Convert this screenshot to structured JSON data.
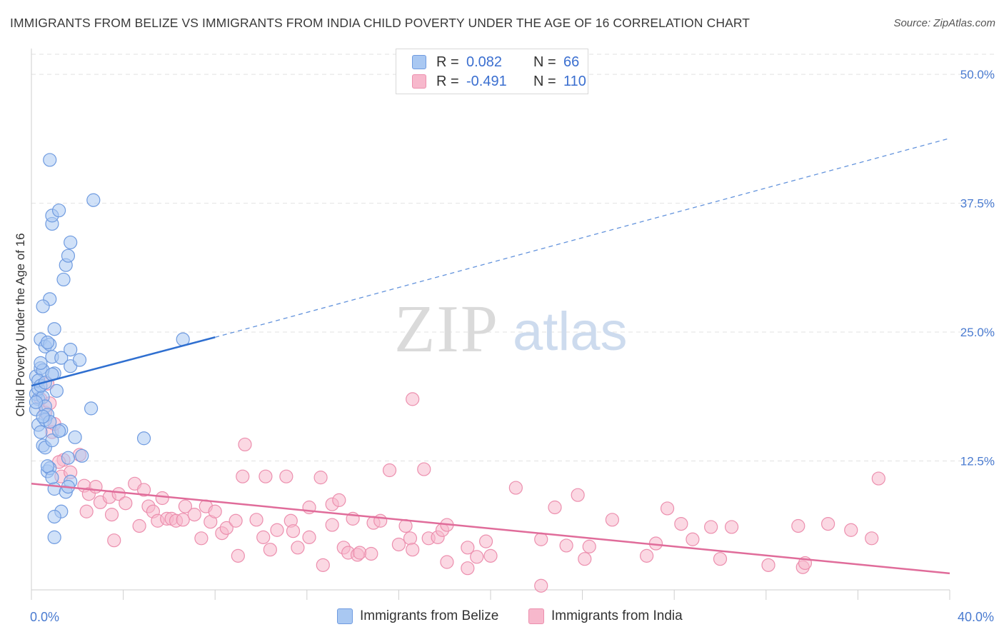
{
  "header": {
    "title": "IMMIGRANTS FROM BELIZE VS IMMIGRANTS FROM INDIA CHILD POVERTY UNDER THE AGE OF 16 CORRELATION CHART",
    "source": "Source: ZipAtlas.com"
  },
  "legend": {
    "rows": [
      {
        "r_label": "R =",
        "r_value": "0.082",
        "n_label": "N =",
        "n_value": "66"
      },
      {
        "r_label": "R =",
        "r_value": "-0.491",
        "n_label": "N =",
        "n_value": "110"
      }
    ]
  },
  "bottom_legend": {
    "belize": "Immigrants from Belize",
    "india": "Immigrants from India"
  },
  "watermark": {
    "zip": "ZIP",
    "atlas": "atlas"
  },
  "colors": {
    "belize_fill": "#a9c8f2",
    "belize_stroke": "#6f9be0",
    "belize_line": "#2f6fd0",
    "india_fill": "#f7b8cc",
    "india_stroke": "#ec8fae",
    "india_line": "#e06c9a",
    "tick_text": "#4a7bd0"
  },
  "chart_data": {
    "type": "scatter",
    "title": "IMMIGRANTS FROM BELIZE VS IMMIGRANTS FROM INDIA CHILD POVERTY UNDER THE AGE OF 16 CORRELATION CHART",
    "xlabel": "",
    "ylabel": "Child Poverty Under the Age of 16",
    "xlim": [
      0,
      40
    ],
    "ylim": [
      0,
      52.5
    ],
    "x_tick_labels": [
      "0.0%",
      "40.0%"
    ],
    "y_ticks": [
      12.5,
      25.0,
      37.5,
      50.0
    ],
    "y_tick_labels": [
      "12.5%",
      "25.0%",
      "37.5%",
      "50.0%"
    ],
    "grid": true,
    "series": [
      {
        "name": "Immigrants from Belize",
        "R": 0.082,
        "N": 66,
        "trend": {
          "x0": 0,
          "y0": 19.8,
          "x1": 8,
          "y1": 24.5,
          "dashed_to_x": 40,
          "dashed_to_y": 43.8
        },
        "points": [
          [
            0.2,
            20.7
          ],
          [
            0.2,
            19.0
          ],
          [
            0.3,
            18.5
          ],
          [
            0.2,
            17.5
          ],
          [
            0.3,
            16.0
          ],
          [
            0.4,
            21.5
          ],
          [
            0.5,
            21.3
          ],
          [
            0.4,
            22.0
          ],
          [
            0.3,
            19.5
          ],
          [
            0.5,
            18.7
          ],
          [
            0.6,
            17.8
          ],
          [
            0.7,
            17.0
          ],
          [
            0.6,
            16.5
          ],
          [
            0.8,
            16.3
          ],
          [
            0.4,
            15.3
          ],
          [
            0.5,
            14.0
          ],
          [
            0.6,
            13.8
          ],
          [
            0.9,
            14.5
          ],
          [
            0.4,
            24.3
          ],
          [
            0.6,
            23.6
          ],
          [
            0.8,
            23.8
          ],
          [
            0.7,
            24.0
          ],
          [
            0.9,
            22.6
          ],
          [
            1.0,
            25.3
          ],
          [
            0.8,
            28.2
          ],
          [
            0.5,
            27.5
          ],
          [
            1.0,
            21.0
          ],
          [
            1.1,
            19.3
          ],
          [
            1.3,
            22.5
          ],
          [
            1.7,
            21.7
          ],
          [
            1.7,
            23.3
          ],
          [
            2.1,
            22.3
          ],
          [
            1.3,
            15.5
          ],
          [
            1.9,
            14.8
          ],
          [
            1.6,
            12.8
          ],
          [
            2.2,
            13.0
          ],
          [
            0.7,
            11.5
          ],
          [
            0.8,
            11.8
          ],
          [
            1.0,
            9.8
          ],
          [
            1.5,
            9.5
          ],
          [
            1.7,
            10.5
          ],
          [
            1.6,
            10.0
          ],
          [
            1.3,
            7.6
          ],
          [
            1.0,
            7.1
          ],
          [
            1.0,
            5.1
          ],
          [
            2.6,
            17.6
          ],
          [
            4.9,
            14.7
          ],
          [
            6.6,
            24.3
          ],
          [
            1.4,
            30.1
          ],
          [
            1.5,
            31.5
          ],
          [
            1.6,
            32.4
          ],
          [
            1.7,
            33.7
          ],
          [
            0.9,
            35.5
          ],
          [
            0.9,
            36.3
          ],
          [
            1.2,
            36.8
          ],
          [
            0.8,
            41.7
          ],
          [
            2.7,
            37.8
          ],
          [
            0.3,
            20.3
          ],
          [
            0.4,
            19.8
          ],
          [
            0.6,
            20.1
          ],
          [
            0.2,
            18.2
          ],
          [
            0.9,
            20.9
          ],
          [
            0.5,
            16.8
          ],
          [
            1.2,
            15.4
          ],
          [
            0.7,
            12.0
          ],
          [
            0.9,
            10.9
          ]
        ]
      },
      {
        "name": "Immigrants from India",
        "R": -0.491,
        "N": 110,
        "trend": {
          "x0": 0,
          "y0": 10.3,
          "x1": 40,
          "y1": 1.6
        },
        "points": [
          [
            0.4,
            18.5
          ],
          [
            0.6,
            17.2
          ],
          [
            0.9,
            15.3
          ],
          [
            1.0,
            16.1
          ],
          [
            0.7,
            20.0
          ],
          [
            1.3,
            11.0
          ],
          [
            1.4,
            12.6
          ],
          [
            1.7,
            11.4
          ],
          [
            2.1,
            13.1
          ],
          [
            2.3,
            10.1
          ],
          [
            2.5,
            9.3
          ],
          [
            2.8,
            10.0
          ],
          [
            3.0,
            8.5
          ],
          [
            3.4,
            9.0
          ],
          [
            3.8,
            9.3
          ],
          [
            3.5,
            7.3
          ],
          [
            4.1,
            8.4
          ],
          [
            4.5,
            10.3
          ],
          [
            4.9,
            9.7
          ],
          [
            4.7,
            6.2
          ],
          [
            5.1,
            8.1
          ],
          [
            5.3,
            7.6
          ],
          [
            5.5,
            6.7
          ],
          [
            5.7,
            8.9
          ],
          [
            5.9,
            6.9
          ],
          [
            6.1,
            6.9
          ],
          [
            6.3,
            6.7
          ],
          [
            6.6,
            6.8
          ],
          [
            6.7,
            8.1
          ],
          [
            7.1,
            7.3
          ],
          [
            7.4,
            5.0
          ],
          [
            7.6,
            8.1
          ],
          [
            7.8,
            6.6
          ],
          [
            8.0,
            7.6
          ],
          [
            8.3,
            5.5
          ],
          [
            8.5,
            6.0
          ],
          [
            8.9,
            6.7
          ],
          [
            9.0,
            3.3
          ],
          [
            9.3,
            14.1
          ],
          [
            9.2,
            11.0
          ],
          [
            9.8,
            6.8
          ],
          [
            10.1,
            5.1
          ],
          [
            10.4,
            3.9
          ],
          [
            10.7,
            5.8
          ],
          [
            10.2,
            11.0
          ],
          [
            11.1,
            11.0
          ],
          [
            11.3,
            6.7
          ],
          [
            11.4,
            5.7
          ],
          [
            11.6,
            4.1
          ],
          [
            12.1,
            5.1
          ],
          [
            12.1,
            8.0
          ],
          [
            12.6,
            10.9
          ],
          [
            12.7,
            2.4
          ],
          [
            13.1,
            8.3
          ],
          [
            13.1,
            6.3
          ],
          [
            13.4,
            8.7
          ],
          [
            13.6,
            4.1
          ],
          [
            13.8,
            3.6
          ],
          [
            14.0,
            6.9
          ],
          [
            14.2,
            3.4
          ],
          [
            14.3,
            3.6
          ],
          [
            14.8,
            3.5
          ],
          [
            14.9,
            6.5
          ],
          [
            15.2,
            6.7
          ],
          [
            15.6,
            11.6
          ],
          [
            16.0,
            4.4
          ],
          [
            16.3,
            6.2
          ],
          [
            16.5,
            5.0
          ],
          [
            16.6,
            3.9
          ],
          [
            17.1,
            11.7
          ],
          [
            17.3,
            5.0
          ],
          [
            17.7,
            5.1
          ],
          [
            17.9,
            5.8
          ],
          [
            18.1,
            6.3
          ],
          [
            18.1,
            2.7
          ],
          [
            19.0,
            4.1
          ],
          [
            19.0,
            2.1
          ],
          [
            19.4,
            3.2
          ],
          [
            19.8,
            4.7
          ],
          [
            20.0,
            3.3
          ],
          [
            21.1,
            9.9
          ],
          [
            22.2,
            4.9
          ],
          [
            22.2,
            0.4
          ],
          [
            22.8,
            8.0
          ],
          [
            23.3,
            4.3
          ],
          [
            23.8,
            9.2
          ],
          [
            24.1,
            3.0
          ],
          [
            24.3,
            4.2
          ],
          [
            25.3,
            6.8
          ],
          [
            27.2,
            4.5
          ],
          [
            27.7,
            7.9
          ],
          [
            28.3,
            6.4
          ],
          [
            28.8,
            4.9
          ],
          [
            29.6,
            6.1
          ],
          [
            30.0,
            3.0
          ],
          [
            30.5,
            6.1
          ],
          [
            32.1,
            2.4
          ],
          [
            33.4,
            6.2
          ],
          [
            33.6,
            2.2
          ],
          [
            33.7,
            2.6
          ],
          [
            34.7,
            6.4
          ],
          [
            35.7,
            5.8
          ],
          [
            36.6,
            5.0
          ],
          [
            36.9,
            10.8
          ],
          [
            16.6,
            18.5
          ],
          [
            0.8,
            18.1
          ],
          [
            1.2,
            12.4
          ],
          [
            2.4,
            7.6
          ],
          [
            3.6,
            4.8
          ],
          [
            26.8,
            3.3
          ]
        ]
      }
    ]
  }
}
